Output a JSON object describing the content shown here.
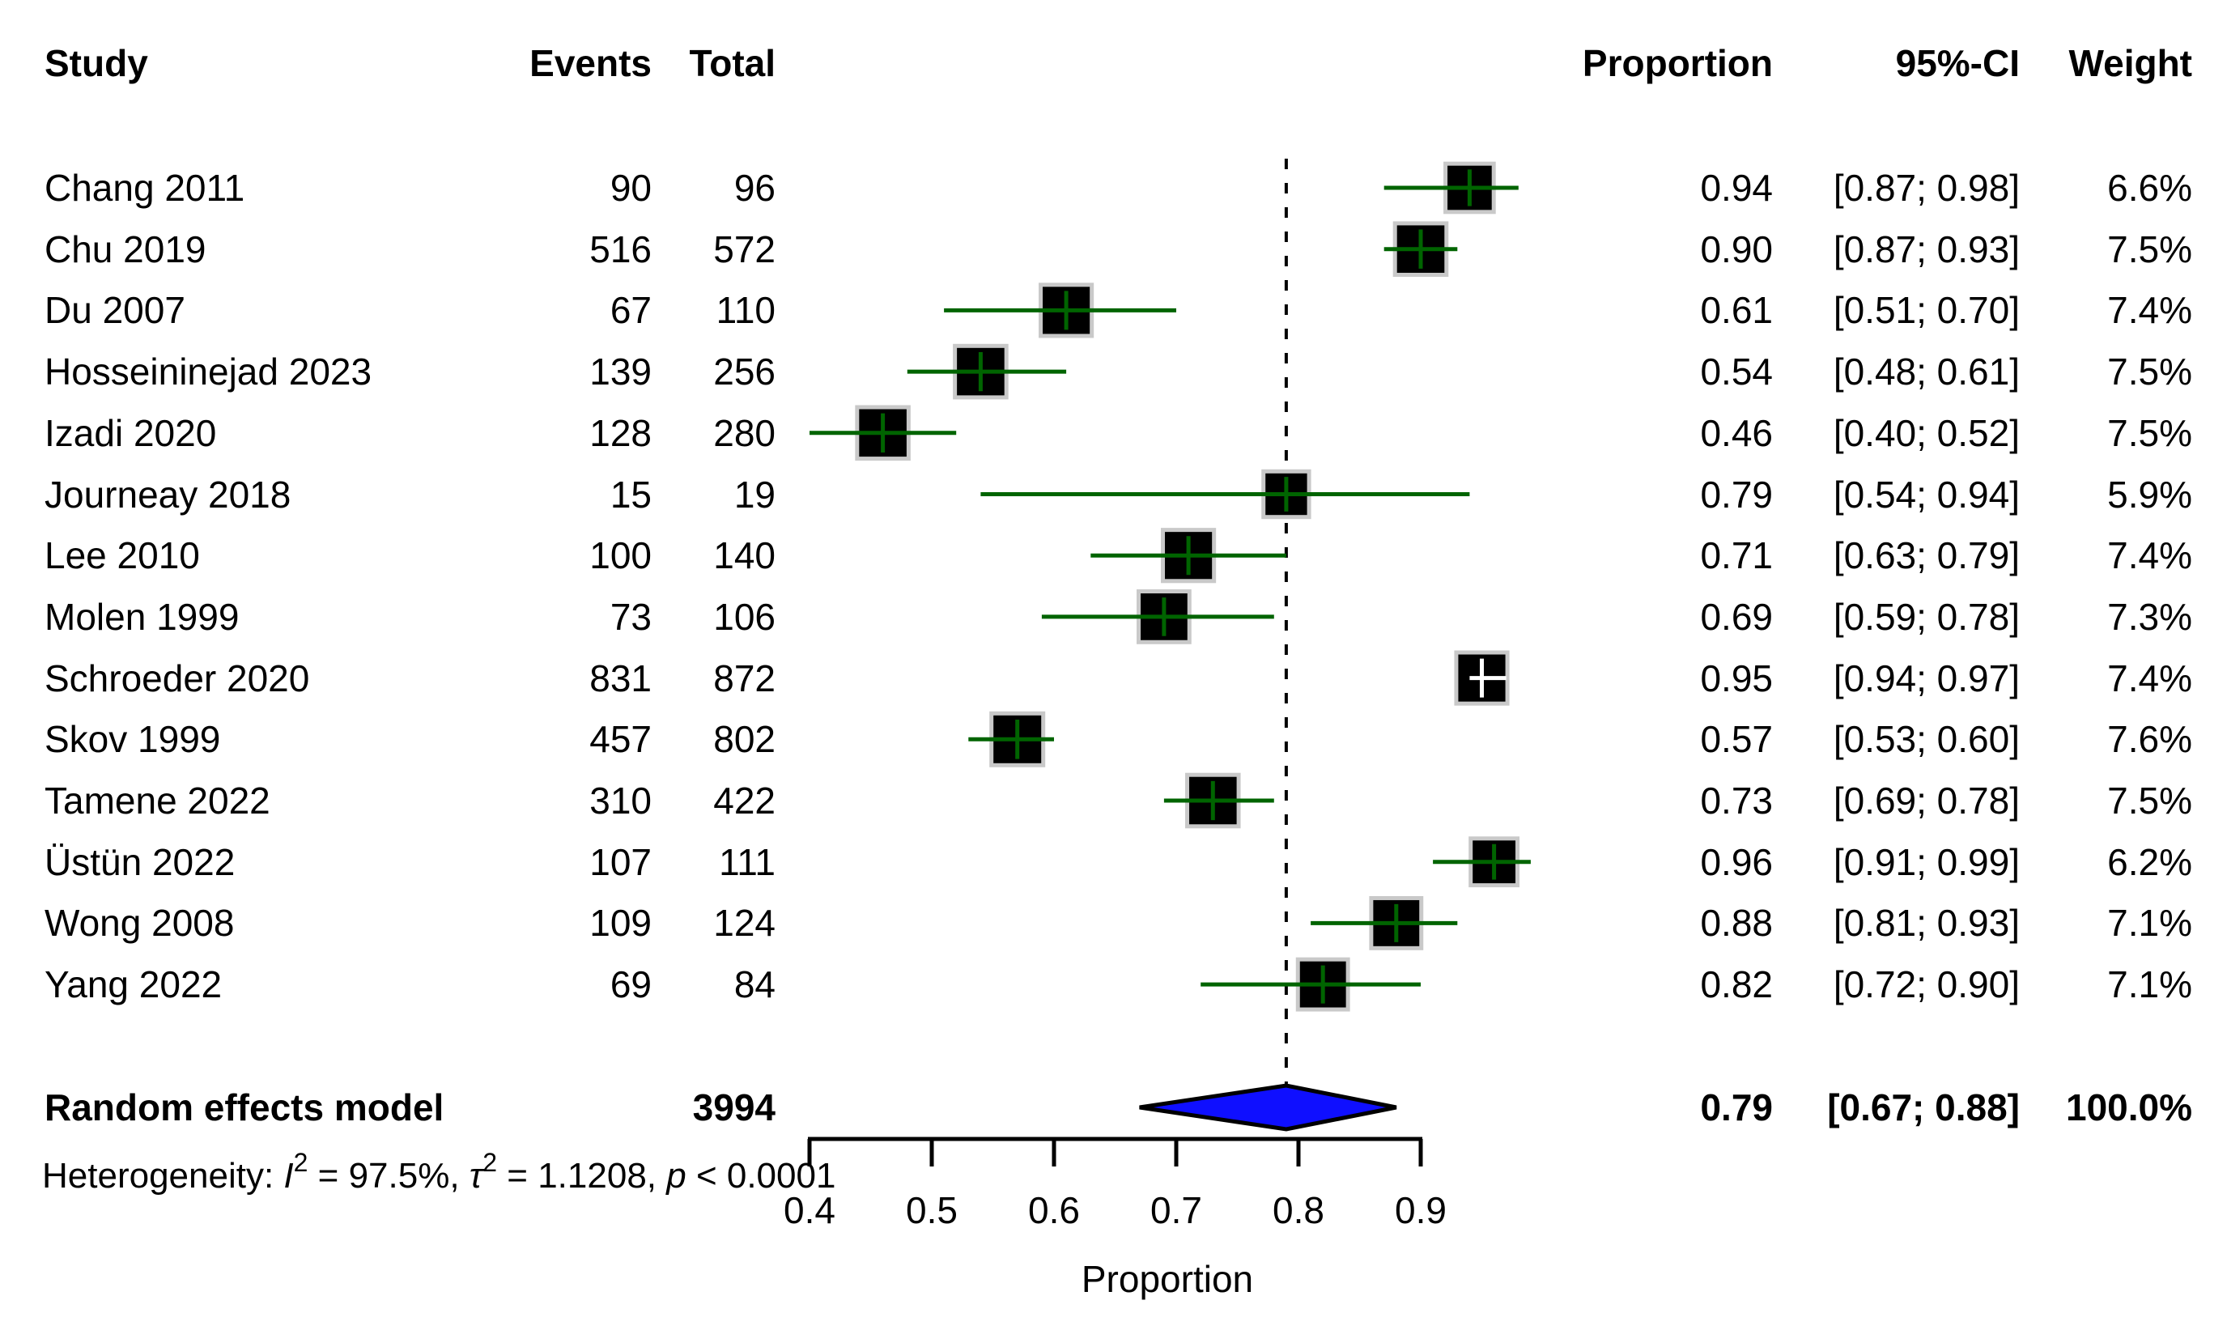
{
  "chart_data": {
    "type": "forest",
    "headers": {
      "study": "Study",
      "events": "Events",
      "total": "Total",
      "proportion": "Proportion",
      "ci": "95%-CI",
      "weight": "Weight"
    },
    "studies": [
      {
        "study": "Chang 2011",
        "events": "90",
        "total": "96",
        "proportion": "0.94",
        "estimate": 0.94,
        "ci": "[0.87; 0.98]",
        "ci_lower": 0.87,
        "ci_upper": 0.98,
        "weight": "6.6%",
        "weight_value": 6.6
      },
      {
        "study": "Chu 2019",
        "events": "516",
        "total": "572",
        "proportion": "0.90",
        "estimate": 0.9,
        "ci": "[0.87; 0.93]",
        "ci_lower": 0.87,
        "ci_upper": 0.93,
        "weight": "7.5%",
        "weight_value": 7.5
      },
      {
        "study": "Du 2007",
        "events": "67",
        "total": "110",
        "proportion": "0.61",
        "estimate": 0.61,
        "ci": "[0.51; 0.70]",
        "ci_lower": 0.51,
        "ci_upper": 0.7,
        "weight": "7.4%",
        "weight_value": 7.4
      },
      {
        "study": "Hosseininejad 2023",
        "events": "139",
        "total": "256",
        "proportion": "0.54",
        "estimate": 0.54,
        "ci": "[0.48; 0.61]",
        "ci_lower": 0.48,
        "ci_upper": 0.61,
        "weight": "7.5%",
        "weight_value": 7.5
      },
      {
        "study": "Izadi 2020",
        "events": "128",
        "total": "280",
        "proportion": "0.46",
        "estimate": 0.46,
        "ci": "[0.40; 0.52]",
        "ci_lower": 0.4,
        "ci_upper": 0.52,
        "weight": "7.5%",
        "weight_value": 7.5
      },
      {
        "study": "Journeay 2018",
        "events": "15",
        "total": "19",
        "proportion": "0.79",
        "estimate": 0.79,
        "ci": "[0.54; 0.94]",
        "ci_lower": 0.54,
        "ci_upper": 0.94,
        "weight": "5.9%",
        "weight_value": 5.9
      },
      {
        "study": "Lee 2010",
        "events": "100",
        "total": "140",
        "proportion": "0.71",
        "estimate": 0.71,
        "ci": "[0.63; 0.79]",
        "ci_lower": 0.63,
        "ci_upper": 0.79,
        "weight": "7.4%",
        "weight_value": 7.4
      },
      {
        "study": "Molen 1999",
        "events": "73",
        "total": "106",
        "proportion": "0.69",
        "estimate": 0.69,
        "ci": "[0.59; 0.78]",
        "ci_lower": 0.59,
        "ci_upper": 0.78,
        "weight": "7.3%",
        "weight_value": 7.3
      },
      {
        "study": "Schroeder 2020",
        "events": "831",
        "total": "872",
        "proportion": "0.95",
        "estimate": 0.95,
        "ci": "[0.94; 0.97]",
        "ci_lower": 0.94,
        "ci_upper": 0.97,
        "weight": "7.4%",
        "weight_value": 7.4
      },
      {
        "study": "Skov 1999",
        "events": "457",
        "total": "802",
        "proportion": "0.57",
        "estimate": 0.57,
        "ci": "[0.53; 0.60]",
        "ci_lower": 0.53,
        "ci_upper": 0.6,
        "weight": "7.6%",
        "weight_value": 7.6
      },
      {
        "study": "Tamene 2022",
        "events": "310",
        "total": "422",
        "proportion": "0.73",
        "estimate": 0.73,
        "ci": "[0.69; 0.78]",
        "ci_lower": 0.69,
        "ci_upper": 0.78,
        "weight": "7.5%",
        "weight_value": 7.5
      },
      {
        "study": "Üstün 2022",
        "events": "107",
        "total": "111",
        "proportion": "0.96",
        "estimate": 0.96,
        "ci": "[0.91; 0.99]",
        "ci_lower": 0.91,
        "ci_upper": 0.99,
        "weight": "6.2%",
        "weight_value": 6.2
      },
      {
        "study": "Wong 2008",
        "events": "109",
        "total": "124",
        "proportion": "0.88",
        "estimate": 0.88,
        "ci": "[0.81; 0.93]",
        "ci_lower": 0.81,
        "ci_upper": 0.93,
        "weight": "7.1%",
        "weight_value": 7.1
      },
      {
        "study": "Yang 2022",
        "events": "69",
        "total": "84",
        "proportion": "0.82",
        "estimate": 0.82,
        "ci": "[0.72; 0.90]",
        "ci_lower": 0.72,
        "ci_upper": 0.9,
        "weight": "7.1%",
        "weight_value": 7.1
      }
    ],
    "summary": {
      "label": "Random effects model",
      "total": "3994",
      "proportion": "0.79",
      "estimate": 0.79,
      "ci": "[0.67; 0.88]",
      "ci_lower": 0.67,
      "ci_upper": 0.88,
      "weight": "100.0%"
    },
    "heterogeneity_segments": [
      {
        "t": "Heterogeneity: "
      },
      {
        "t": "I",
        "i": true
      },
      {
        "t": "2",
        "sup": true
      },
      {
        "t": " = 97.5%, "
      },
      {
        "t": "τ",
        "i": true
      },
      {
        "t": "2",
        "sup": true
      },
      {
        "t": " = 1.1208, "
      },
      {
        "t": "p",
        "i": true
      },
      {
        "t": " < 0.0001"
      }
    ],
    "x_axis": {
      "label": "Proportion",
      "ticks": [
        0.4,
        0.5,
        0.6,
        0.7,
        0.8,
        0.9
      ],
      "tick_labels": [
        "0.4",
        "0.5",
        "0.6",
        "0.7",
        "0.8",
        "0.9"
      ],
      "range": [
        0.4,
        0.9
      ]
    },
    "colors": {
      "ci_line": "#006400",
      "square_fill": "#000000",
      "square_border": "#c9c9c9",
      "inner_marker_white": "#ffffff",
      "diamond_fill": "#0f0fff",
      "diamond_border": "#000000",
      "dashed_line": "#000000",
      "axis": "#000000",
      "text": "#000000"
    }
  }
}
